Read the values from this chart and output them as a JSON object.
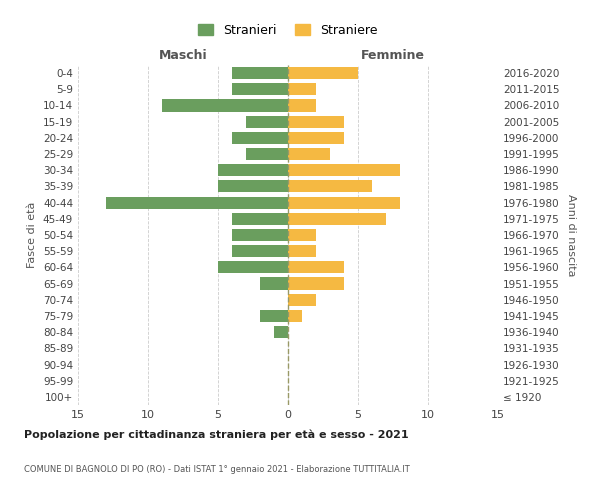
{
  "age_groups": [
    "100+",
    "95-99",
    "90-94",
    "85-89",
    "80-84",
    "75-79",
    "70-74",
    "65-69",
    "60-64",
    "55-59",
    "50-54",
    "45-49",
    "40-44",
    "35-39",
    "30-34",
    "25-29",
    "20-24",
    "15-19",
    "10-14",
    "5-9",
    "0-4"
  ],
  "birth_years": [
    "≤ 1920",
    "1921-1925",
    "1926-1930",
    "1931-1935",
    "1936-1940",
    "1941-1945",
    "1946-1950",
    "1951-1955",
    "1956-1960",
    "1961-1965",
    "1966-1970",
    "1971-1975",
    "1976-1980",
    "1981-1985",
    "1986-1990",
    "1991-1995",
    "1996-2000",
    "2001-2005",
    "2006-2010",
    "2011-2015",
    "2016-2020"
  ],
  "maschi": [
    0,
    0,
    0,
    0,
    1,
    2,
    0,
    2,
    5,
    4,
    4,
    4,
    13,
    5,
    5,
    3,
    4,
    3,
    9,
    4,
    4
  ],
  "femmine": [
    0,
    0,
    0,
    0,
    0,
    1,
    2,
    4,
    4,
    2,
    2,
    7,
    8,
    6,
    8,
    3,
    4,
    4,
    2,
    2,
    5
  ],
  "maschi_color": "#6a9e5e",
  "femmine_color": "#f5b942",
  "title_main": "Popolazione per cittadinanza straniera per età e sesso - 2021",
  "title_sub": "COMUNE DI BAGNOLO DI PO (RO) - Dati ISTAT 1° gennaio 2021 - Elaborazione TUTTITALIA.IT",
  "xlabel_left": "Maschi",
  "xlabel_right": "Femmine",
  "ylabel_left": "Fasce di età",
  "ylabel_right": "Anni di nascita",
  "legend_maschi": "Stranieri",
  "legend_femmine": "Straniere",
  "xlim": 15,
  "background_color": "#ffffff",
  "grid_color": "#cccccc"
}
